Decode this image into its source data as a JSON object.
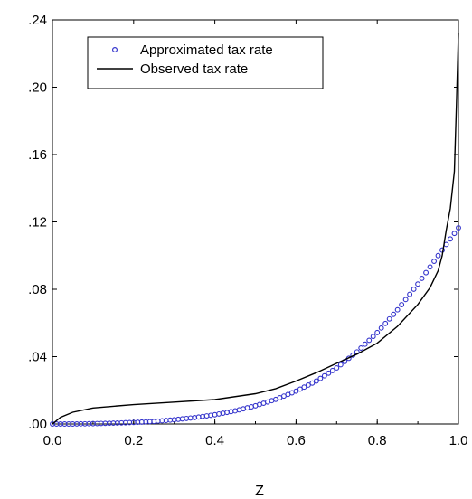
{
  "chart_data": {
    "type": "line",
    "xlabel": "Z",
    "ylabel": "",
    "xlim": [
      0.0,
      1.0
    ],
    "ylim": [
      0.0,
      0.24
    ],
    "x_ticks": [
      "0.0",
      "0.2",
      "0.4",
      "0.6",
      "0.8",
      "1.0"
    ],
    "y_ticks": [
      ".00",
      ".04",
      ".08",
      ".12",
      ".16",
      ".20",
      ".24"
    ],
    "legend_position": "top-left",
    "series": [
      {
        "name": "Approximated tax rate",
        "style": "markers",
        "color": "#3333cc",
        "x": [
          0.0,
          0.05,
          0.1,
          0.15,
          0.2,
          0.25,
          0.3,
          0.35,
          0.4,
          0.45,
          0.5,
          0.55,
          0.6,
          0.65,
          0.7,
          0.75,
          0.8,
          0.85,
          0.9,
          0.95,
          1.0
        ],
        "values": [
          0.0,
          0.0,
          0.0002,
          0.0005,
          0.0009,
          0.0015,
          0.0025,
          0.0038,
          0.0055,
          0.0078,
          0.0108,
          0.0146,
          0.0195,
          0.0255,
          0.0333,
          0.0428,
          0.0543,
          0.0678,
          0.0831,
          0.1,
          0.1165
        ]
      },
      {
        "name": "Observed tax rate",
        "style": "line",
        "color": "#000000",
        "x": [
          0.0,
          0.02,
          0.05,
          0.1,
          0.15,
          0.2,
          0.3,
          0.4,
          0.5,
          0.55,
          0.6,
          0.65,
          0.7,
          0.75,
          0.8,
          0.85,
          0.9,
          0.93,
          0.95,
          0.96,
          0.97,
          0.98,
          0.99,
          0.995,
          1.0
        ],
        "values": [
          0.0,
          0.004,
          0.007,
          0.0095,
          0.0105,
          0.0115,
          0.013,
          0.0145,
          0.018,
          0.021,
          0.0255,
          0.0305,
          0.036,
          0.0415,
          0.048,
          0.058,
          0.071,
          0.081,
          0.091,
          0.1,
          0.115,
          0.128,
          0.15,
          0.19,
          0.232
        ]
      }
    ]
  }
}
